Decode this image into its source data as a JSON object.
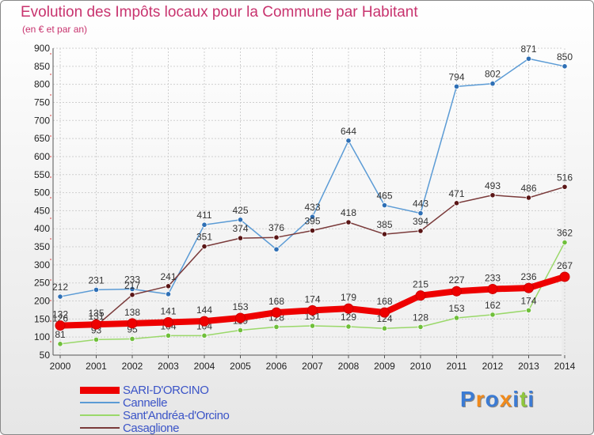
{
  "title": "Evolution des Impôts locaux pour la Commune par Habitant",
  "subtitle": "(en € et par an)",
  "brand": "Proxiti",
  "chart_data": {
    "type": "line",
    "title": "Evolution des Impôts locaux pour la Commune par Habitant",
    "subtitle": "(en € et par an)",
    "xlabel": "",
    "ylabel": "",
    "ylim": [
      50,
      900
    ],
    "yticks": [
      50,
      100,
      150,
      200,
      250,
      300,
      350,
      400,
      450,
      500,
      550,
      600,
      650,
      700,
      750,
      800,
      850,
      900
    ],
    "categories": [
      "2000",
      "2001",
      "2002",
      "2003",
      "2004",
      "2005",
      "2006",
      "2007",
      "2008",
      "2009",
      "2010",
      "2011",
      "2012",
      "2013",
      "2014"
    ],
    "grid": true,
    "legend_position": "bottom-left",
    "series": [
      {
        "name": "Cannelle",
        "color": "#5b9bd5",
        "marker": "#2e6fb5",
        "values": [
          212,
          231,
          233,
          219,
          411,
          425,
          343,
          433,
          644,
          465,
          443,
          794,
          802,
          871,
          850
        ],
        "labels": [
          "212",
          "231",
          "233",
          "",
          "411",
          "425",
          "",
          "433",
          "644",
          "465",
          "443",
          "794",
          "802",
          "871",
          "850"
        ]
      },
      {
        "name": "Casaglione",
        "color": "#7a3a3a",
        "marker": "#5a1616",
        "values": [
          126,
          131,
          217,
          241,
          351,
          374,
          376,
          395,
          418,
          385,
          394,
          471,
          493,
          486,
          516
        ],
        "labels": [
          "126",
          "131",
          "217",
          "241",
          "351",
          "374",
          "376",
          "395",
          "418",
          "385",
          "394",
          "471",
          "493",
          "486",
          "516"
        ]
      },
      {
        "name": "Sant'Andréa-d'Orcino",
        "color": "#9ad86a",
        "marker": "#6fbf3a",
        "values": [
          81,
          93,
          95,
          104,
          104,
          119,
          128,
          131,
          129,
          124,
          128,
          153,
          162,
          174,
          362
        ],
        "labels": [
          "81",
          "93",
          "95",
          "104",
          "104",
          "119",
          "128",
          "131",
          "129",
          "124",
          "128",
          "153",
          "162",
          "174",
          "362"
        ]
      },
      {
        "name": "SARI-D'ORCINO",
        "color": "#ee0000",
        "marker": "#ee0000",
        "values": [
          132,
          135,
          138,
          141,
          144,
          153,
          168,
          174,
          179,
          168,
          215,
          227,
          233,
          236,
          267
        ],
        "labels": [
          "132",
          "135",
          "138",
          "141",
          "144",
          "153",
          "168",
          "174",
          "179",
          "168",
          "215",
          "227",
          "233",
          "236",
          "267"
        ]
      }
    ],
    "legend": [
      "SARI-D'ORCINO",
      "Cannelle",
      "Sant'Andréa-d'Orcino",
      "Casaglione"
    ]
  }
}
